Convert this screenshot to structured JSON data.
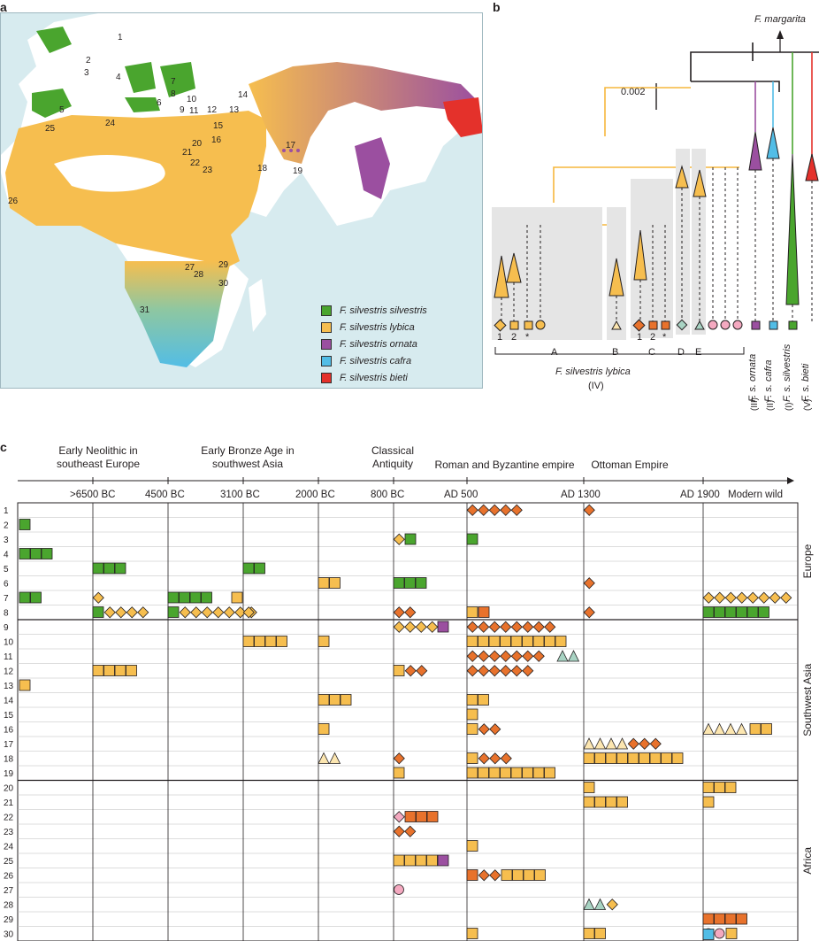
{
  "panels": {
    "a": "a",
    "b": "b",
    "c": "c"
  },
  "map": {
    "site_numbers": [
      "1",
      "2",
      "3",
      "4",
      "5",
      "6",
      "7",
      "8",
      "9",
      "10",
      "11",
      "12",
      "13",
      "14",
      "15",
      "16",
      "17",
      "18",
      "19",
      "20",
      "21",
      "22",
      "23",
      "24",
      "25",
      "26",
      "27",
      "28",
      "29",
      "30",
      "31"
    ],
    "legend": [
      {
        "label": "F. silvestris silvestris",
        "color": "#4aa52e"
      },
      {
        "label": "F. silvestris lybica",
        "color": "#f6be4f"
      },
      {
        "label": "F. silvestris ornata",
        "color": "#9b4fa0"
      },
      {
        "label": "F. silvestris cafra",
        "color": "#52bde6"
      },
      {
        "label": "F. silvestris bieti",
        "color": "#e4312b"
      }
    ]
  },
  "tree": {
    "outgroup": "F. margarita",
    "scale": "0.002",
    "clades": [
      "A",
      "B",
      "C",
      "D",
      "E"
    ],
    "tip_numbers": [
      "1",
      "2",
      "*",
      "1",
      "2",
      "*"
    ],
    "lybica_label": "F. silvestris lybica",
    "lybica_clade": "(IV)",
    "subspecies": [
      {
        "name": "F. s. ornata",
        "clade": "(III)"
      },
      {
        "name": "F. s. cafra",
        "clade": "(II)"
      },
      {
        "name": "F. s. silvestris",
        "clade": "(I)"
      },
      {
        "name": "F. s. bieti",
        "clade": "(V)"
      }
    ]
  },
  "timeline": {
    "periods": [
      {
        "label": "Early Neolithic in southeast Europe"
      },
      {
        "label": "Early Bronze Age in southwest Asia"
      },
      {
        "label": "Classical Antiquity"
      },
      {
        "label": "Roman and Byzantine empire"
      },
      {
        "label": "Ottoman Empire"
      }
    ],
    "ticks": [
      ">6500 BC",
      "4500 BC",
      "3100 BC",
      "2000 BC",
      "800 BC",
      "AD 500",
      "AD 1300",
      "AD 1900",
      "Modern wild"
    ],
    "rows": [
      "1",
      "2",
      "3",
      "4",
      "5",
      "6",
      "7",
      "8",
      "9",
      "10",
      "11",
      "12",
      "13",
      "14",
      "15",
      "16",
      "17",
      "18",
      "19",
      "20",
      "21",
      "22",
      "23",
      "24",
      "25",
      "26",
      "27",
      "28",
      "29",
      "30"
    ],
    "regions": [
      "Europe",
      "Southwest Asia",
      "Africa"
    ]
  }
}
